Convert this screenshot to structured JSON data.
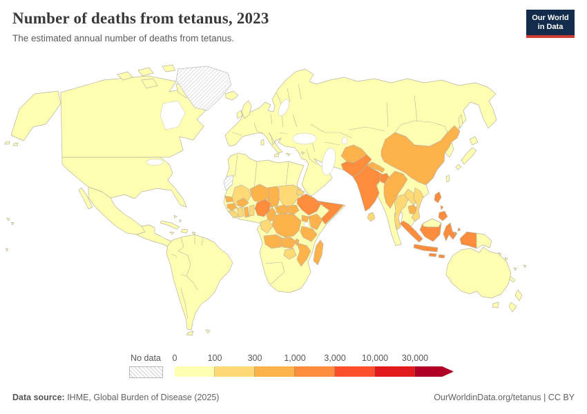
{
  "header": {
    "title": "Number of deaths from tetanus, 2023",
    "subtitle": "The estimated annual number of deaths from tetanus.",
    "logo_line1": "Our World",
    "logo_line2": "in Data",
    "logo_bg": "#132c4b",
    "logo_accent": "#d13d33"
  },
  "legend": {
    "no_data_label": "No data"
  },
  "footer": {
    "source_label": "Data source:",
    "source_text": " IHME, Global Burden of Disease (2025)",
    "right_text": "OurWorldinData.org/tetanus | CC BY"
  },
  "chart_data": {
    "type": "choropleth",
    "title": "Number of deaths from tetanus, 2023",
    "metric": "Estimated annual number of deaths from tetanus",
    "year": 2023,
    "source": "IHME, Global Burden of Disease (2025)",
    "legend_ticks": [
      "0",
      "100",
      "300",
      "1,000",
      "3,000",
      "10,000",
      "30,000"
    ],
    "band_colors": [
      "#ffffb2",
      "#fed976",
      "#feb24c",
      "#fd8d3c",
      "#fc4e2a",
      "#e31a1c",
      "#b10026"
    ],
    "bins": [
      "0–100",
      "100–300",
      "300–1,000",
      "1,000–3,000",
      "3,000–10,000",
      "10,000–30,000",
      "30,000+"
    ],
    "no_data_label": "No data",
    "ocean_color": "#ffffff",
    "border_color": "#b9b3a1",
    "regions_by_bin": {
      "0-100": [
        "United States",
        "Canada",
        "Mexico",
        "Central America",
        "Caribbean",
        "South America",
        "Europe",
        "Russia",
        "Kazakhstan",
        "Central Asia",
        "Turkey",
        "Middle East",
        "Saudi Arabia",
        "Iran",
        "North Africa",
        "Namibia",
        "Botswana",
        "South Africa",
        "Mongolia",
        "Japan",
        "South Korea",
        "Malaysia",
        "Papua New Guinea",
        "Australia",
        "New Zealand"
      ],
      "100-300": [
        "Mali",
        "Sudan",
        "Eritrea",
        "Sierra Leone",
        "Liberia",
        "Cote d'Ivoire",
        "Togo",
        "Benin",
        "Congo",
        "Gabon",
        "Zimbabwe",
        "Thailand",
        "Laos",
        "Vietnam",
        "Sri Lanka"
      ],
      "300-1000": [
        "China",
        "Afghanistan",
        "Nepal",
        "Myanmar",
        "Cambodia",
        "Senegal",
        "Guinea",
        "Ghana",
        "Burkina Faso",
        "Niger",
        "Chad",
        "Cameroon",
        "Central African Republic",
        "South Sudan",
        "Uganda",
        "Kenya",
        "DR Congo",
        "Tanzania",
        "Angola",
        "Zambia",
        "Malawi",
        "Mozambique",
        "Madagascar"
      ],
      "1000-3000": [
        "India",
        "Pakistan",
        "Bangladesh",
        "Nigeria",
        "Ethiopia",
        "Somalia",
        "Indonesia",
        "Philippines"
      ],
      "3000-10000": [],
      "10000-30000": [],
      "30000+": [],
      "no_data": [
        "Greenland",
        "Western Sahara"
      ]
    },
    "region_bands": {
      "alaska": 0,
      "canada": 0,
      "usa": 0,
      "mexico": 0,
      "baja": 0,
      "central-america": 0,
      "cuba": 0,
      "hispaniola": 0,
      "jamaica": 0,
      "puerto-rico": 0,
      "bahamas": 0,
      "south-america": 0,
      "tierra-del-fuego": 0,
      "falklands": 0,
      "greenland": "nd",
      "iceland": 0,
      "uk": 0,
      "ireland": 0,
      "eurasia": 0,
      "arctic-islands": 0,
      "mediterranean-islands": 0,
      "japan": 0,
      "taiwan": 0,
      "sakhalin": 0,
      "korea": 0,
      "china": 2,
      "mongolia": 0,
      "afghanistan": 2,
      "pakistan": 3,
      "india": 3,
      "nepal": 2,
      "bangladesh": 3,
      "sri-lanka": 1,
      "myanmar": 2,
      "thailand": 1,
      "laos": 1,
      "cambodia": 2,
      "vietnam": 1,
      "philippines": 3,
      "indonesia": 3,
      "malaysia-borneo": 0,
      "papua-new-guinea": 0,
      "australia": 0,
      "tasmania": 0,
      "new-zealand": 0,
      "pacific-islands": 0,
      "new-caledonia": 0,
      "africa": 0,
      "western-sahara": "nd",
      "mali": 1,
      "senegal": 2,
      "guinea": 2,
      "sierra-leone-liberia": 1,
      "cote-divoire": 1,
      "ghana": 2,
      "togo-benin": 1,
      "burkina-faso": 2,
      "niger": 2,
      "chad": 2,
      "sudan": 1,
      "eritrea": 1,
      "nigeria": 3,
      "cameroon": 2,
      "central-african-republic": 2,
      "south-sudan": 2,
      "ethiopia": 3,
      "somalia": 3,
      "kenya": 2,
      "uganda": 2,
      "dr-congo": 2,
      "congo-gabon": 1,
      "angola": 2,
      "zambia": 2,
      "tanzania": 2,
      "malawi": 2,
      "mozambique": 2,
      "zimbabwe": 1,
      "madagascar": 2
    }
  }
}
